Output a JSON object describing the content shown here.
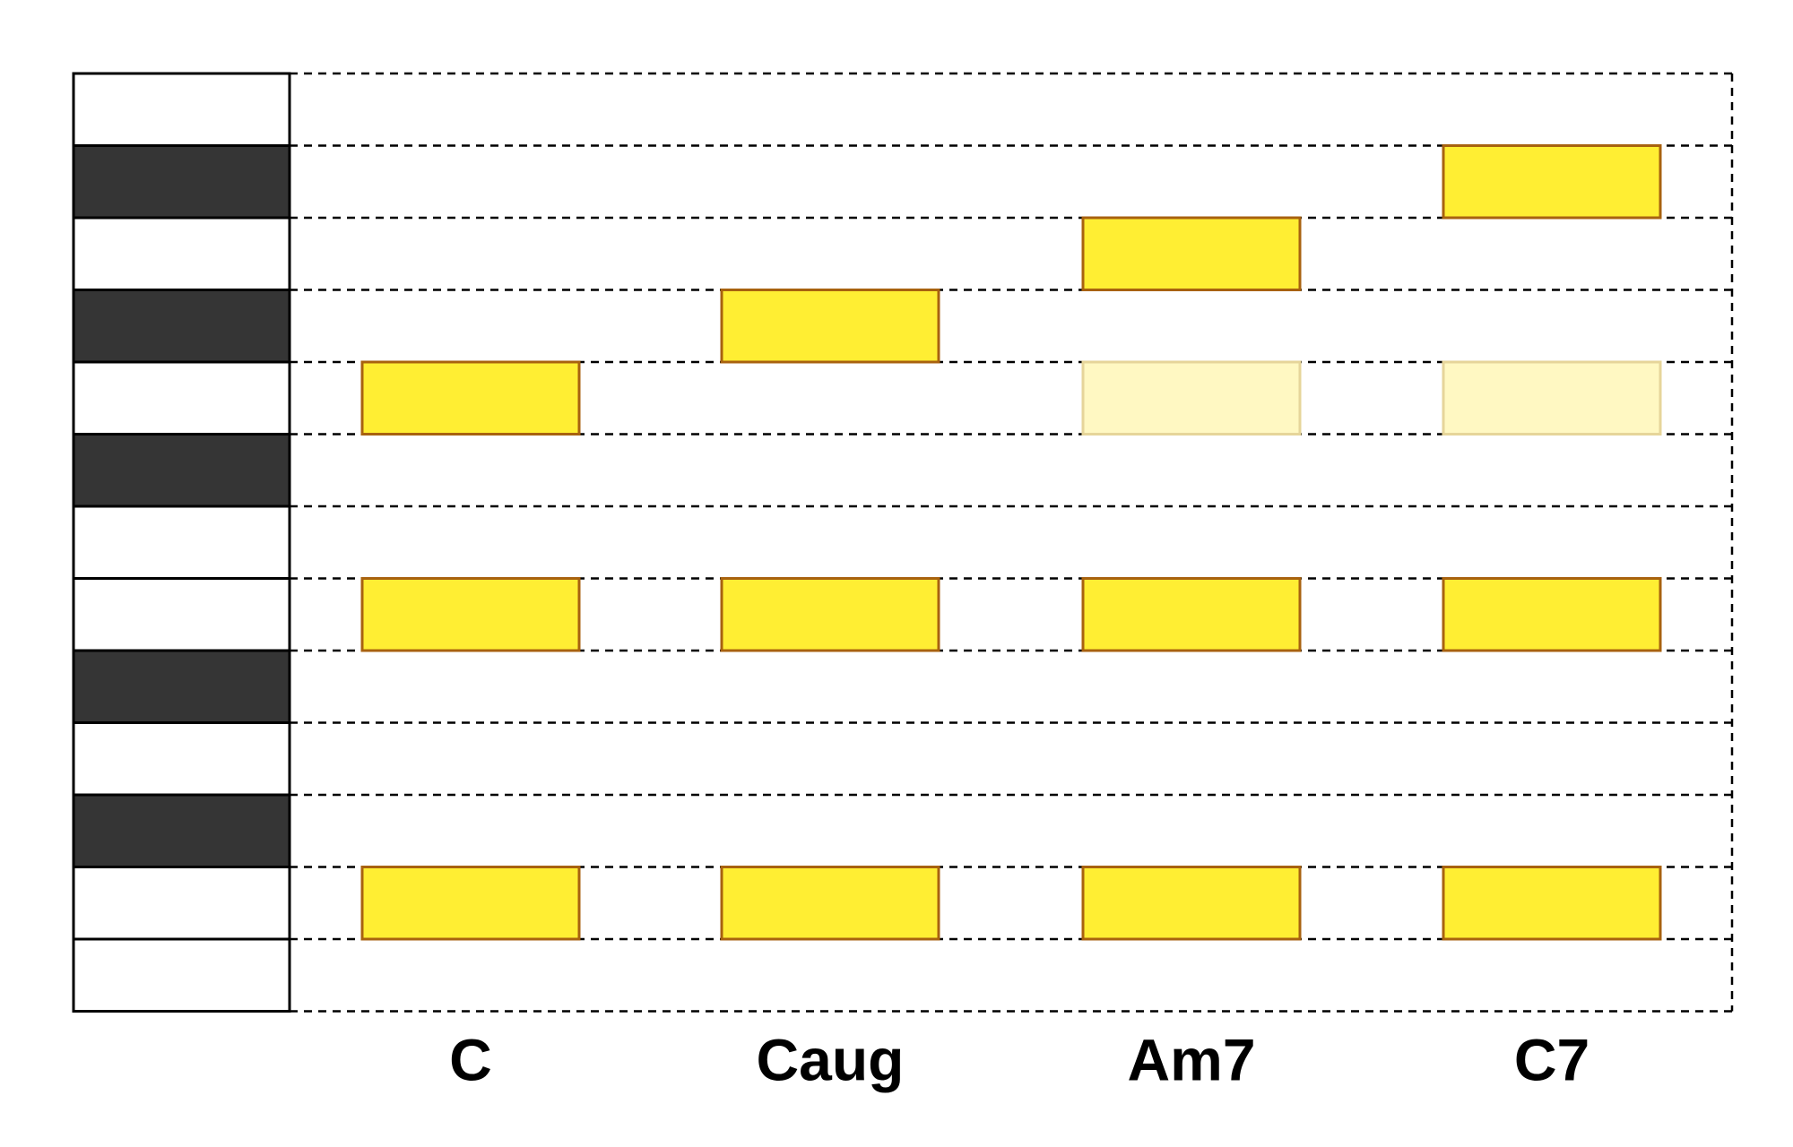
{
  "chords": [
    "C",
    "Caug",
    "Am7",
    "C7"
  ]
}
